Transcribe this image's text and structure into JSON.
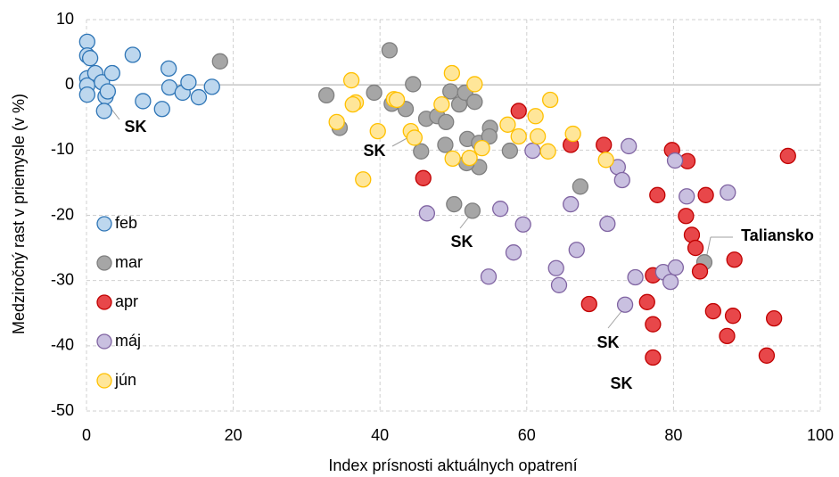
{
  "chart_data": {
    "type": "scatter",
    "x_label": "Index prísnosti aktuálnych opatrení",
    "y_label": "Medziročný rast v priemysle (v %)",
    "xlim": [
      0,
      100
    ],
    "xticks": [
      0,
      20,
      40,
      60,
      80,
      100
    ],
    "ylim": [
      -50,
      10
    ],
    "yticks": [
      -50,
      -40,
      -30,
      -20,
      -10,
      0,
      10
    ],
    "grid": true,
    "legend": "left",
    "series": [
      {
        "name": "feb",
        "color": "#bdd7ee",
        "edge": "#2e75b6",
        "x": [
          0.1,
          0.1,
          0.5,
          6.3,
          0.1,
          0.1,
          0.1,
          1.2,
          2.1,
          2.6,
          2.4,
          3.5,
          7.7,
          11.2,
          11.3,
          10.3,
          13.1,
          13.9,
          15.3,
          17.1,
          2.9
        ],
        "values": [
          6.6,
          4.5,
          4.1,
          4.6,
          1.0,
          -0.1,
          -1.5,
          1.8,
          0.4,
          -1.8,
          -4.0,
          1.8,
          -2.5,
          2.5,
          -0.4,
          -3.7,
          -1.2,
          0.4,
          -1.9,
          -0.3,
          -1.0
        ]
      },
      {
        "name": "mar",
        "color": "#a6a6a6",
        "edge": "#7f7f7f",
        "x": [
          18.2,
          32.7,
          34.5,
          39.2,
          41.3,
          41.6,
          44.5,
          43.5,
          46.3,
          47.8,
          49.0,
          49.6,
          45.6,
          48.9,
          50.8,
          51.6,
          52.9,
          51.9,
          53.5,
          55.0,
          54.9,
          53.5,
          51.8,
          50.1,
          52.6,
          57.7,
          67.3,
          84.2
        ],
        "values": [
          3.6,
          -1.6,
          -6.6,
          -1.2,
          5.3,
          -2.9,
          0.1,
          -3.7,
          -5.2,
          -4.8,
          -5.7,
          -1.0,
          -10.2,
          -9.2,
          -3.0,
          -1.2,
          -2.6,
          -8.3,
          -8.9,
          -6.6,
          -7.9,
          -12.6,
          -12.0,
          -18.3,
          -19.3,
          -10.1,
          -15.6,
          -27.2
        ]
      },
      {
        "name": "apr",
        "color": "#e8474a",
        "edge": "#c00000",
        "x": [
          45.9,
          58.9,
          66.0,
          70.5,
          79.8,
          81.9,
          95.6,
          77.8,
          84.4,
          81.7,
          82.5,
          83.0,
          83.6,
          88.3,
          77.2,
          68.5,
          76.4,
          77.2,
          85.4,
          88.1,
          93.7,
          87.3,
          77.2,
          92.7
        ],
        "values": [
          -14.3,
          -4.0,
          -9.2,
          -9.2,
          -10.0,
          -11.7,
          -10.9,
          -16.9,
          -16.9,
          -20.1,
          -23.0,
          -25.0,
          -28.6,
          -26.8,
          -29.2,
          -33.6,
          -33.3,
          -36.7,
          -34.7,
          -35.4,
          -35.8,
          -38.5,
          -41.8,
          -41.5
        ]
      },
      {
        "name": "máj",
        "color": "#c9c0e0",
        "edge": "#8064a2",
        "x": [
          46.4,
          56.4,
          59.5,
          58.2,
          54.8,
          60.8,
          66.0,
          66.8,
          71.0,
          64.0,
          64.4,
          72.4,
          73.0,
          73.9,
          80.2,
          81.8,
          87.4,
          74.8,
          78.6,
          79.6,
          80.3,
          73.4
        ],
        "values": [
          -19.7,
          -19.0,
          -21.4,
          -25.7,
          -29.4,
          -10.1,
          -18.3,
          -25.3,
          -21.3,
          -28.1,
          -30.7,
          -12.6,
          -14.6,
          -9.4,
          -11.6,
          -17.1,
          -16.5,
          -29.5,
          -28.7,
          -30.2,
          -28.0,
          -33.7
        ]
      },
      {
        "name": "jún",
        "color": "#ffe699",
        "edge": "#ffc000",
        "x": [
          36.1,
          36.7,
          36.3,
          34.1,
          37.7,
          39.7,
          41.9,
          42.3,
          44.2,
          44.7,
          48.4,
          49.8,
          52.9,
          49.9,
          52.2,
          53.9,
          57.4,
          58.9,
          61.2,
          61.5,
          62.9,
          63.2,
          66.3,
          70.8
        ],
        "values": [
          0.7,
          -2.7,
          -3.0,
          -5.7,
          -14.5,
          -7.1,
          -2.2,
          -2.3,
          -7.1,
          -8.1,
          -3.0,
          1.8,
          0.1,
          -11.3,
          -11.2,
          -9.7,
          -6.1,
          -7.9,
          -4.8,
          -7.9,
          -10.2,
          -2.3,
          -7.5,
          -11.5
        ]
      }
    ],
    "annotations": [
      "SK",
      "SK",
      "SK",
      "SK",
      "SK",
      "Taliansko"
    ]
  }
}
